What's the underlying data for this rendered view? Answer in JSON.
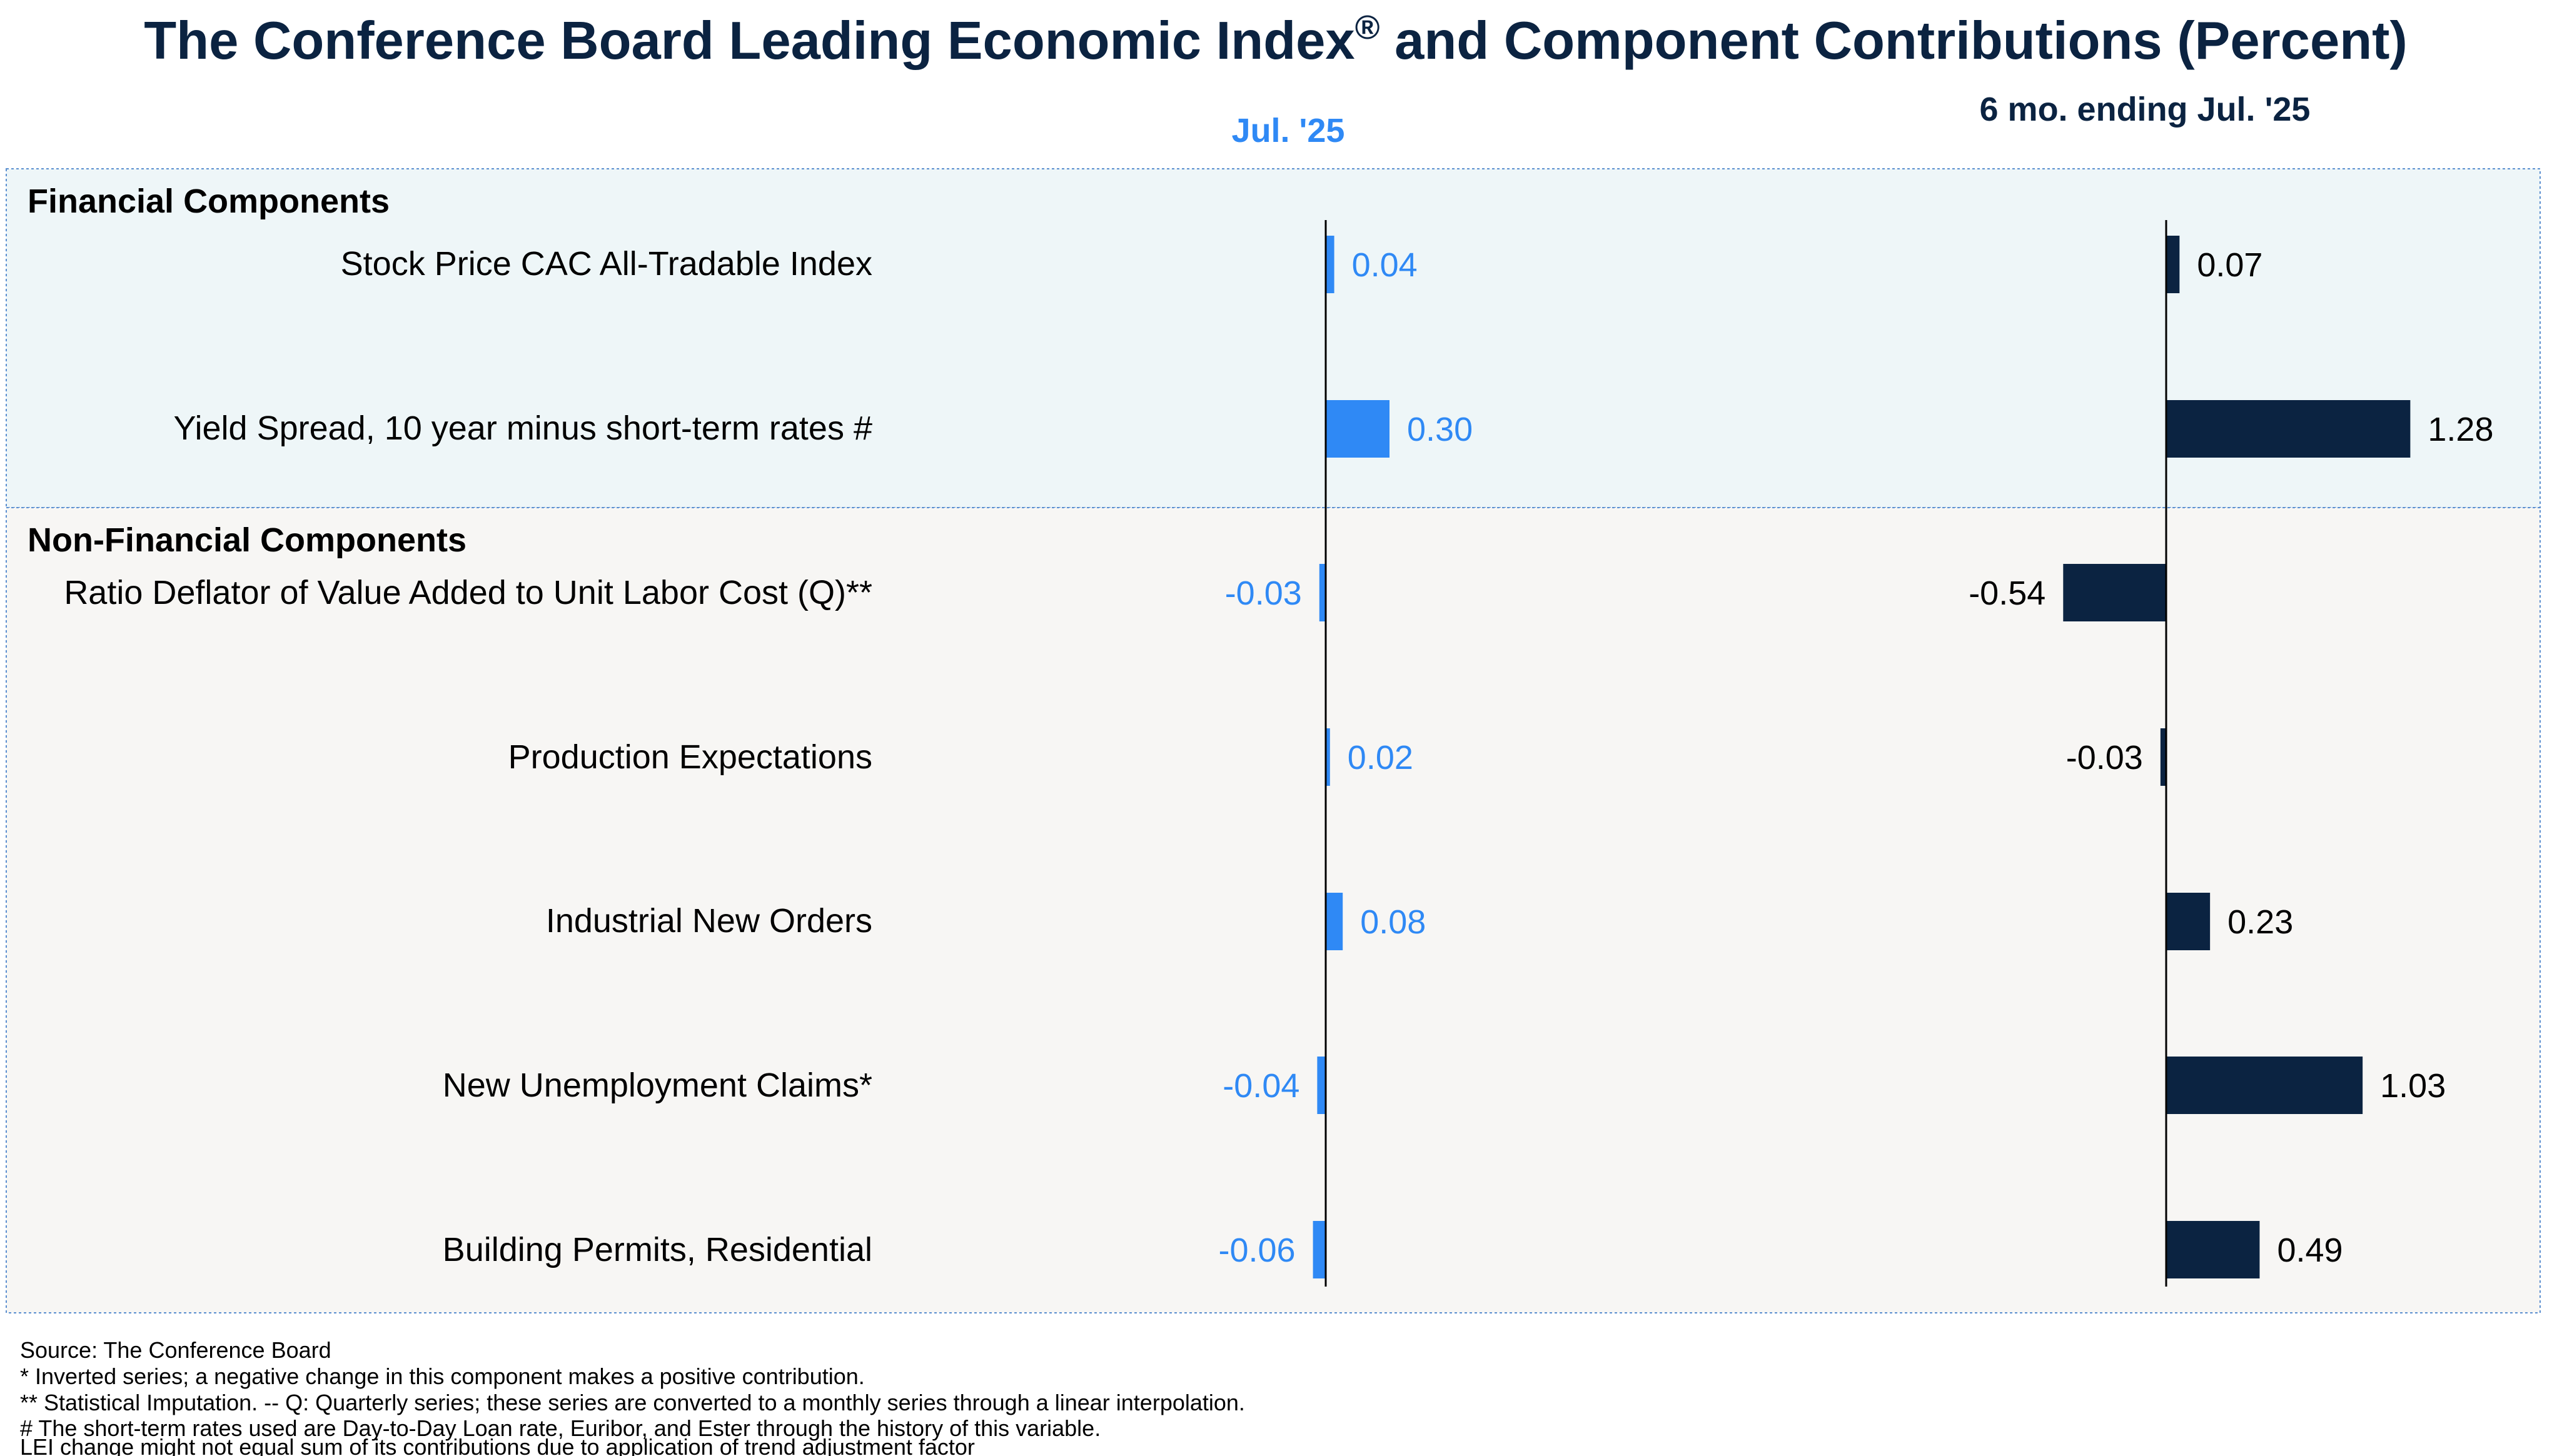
{
  "title": "The Conference Board Leading Economic Index",
  "title_mark": "®",
  "title_rest": " and Component Contributions (Percent)",
  "column_headers": {
    "monthly": "Jul. '25",
    "six_month": "6 mo. ending Jul. '25"
  },
  "sections": {
    "financial": "Financial Components",
    "non_financial": "Non-Financial Components"
  },
  "colors": {
    "monthly": "#2f89f5",
    "six_month": "#0b2341",
    "title": "#0b2341",
    "financial_bg": "#eef6f8",
    "non_financial_bg": "#f7f6f4",
    "border": "#5b8fd0"
  },
  "chart_data": [
    {
      "type": "bar",
      "orientation": "horizontal",
      "title": "Jul. '25",
      "categories": [
        "Stock Price CAC All-Tradable Index",
        "Yield Spread, 10 year minus short-term rates #",
        "Ratio Deflator of Value Added to Unit Labor Cost (Q)**",
        "Production Expectations",
        "Industrial New Orders",
        "New Unemployment Claims*",
        "Building Permits, Residential"
      ],
      "values": [
        0.04,
        0.3,
        -0.03,
        0.02,
        0.08,
        -0.04,
        -0.06
      ],
      "value_labels": [
        "0.04",
        "0.30",
        "-0.03",
        "0.02",
        "0.08",
        "-0.04",
        "-0.06"
      ]
    },
    {
      "type": "bar",
      "orientation": "horizontal",
      "title": "6 mo. ending Jul. '25",
      "categories": [
        "Stock Price CAC All-Tradable Index",
        "Yield Spread, 10 year minus short-term rates #",
        "Ratio Deflator of Value Added to Unit Labor Cost (Q)**",
        "Production Expectations",
        "Industrial New Orders",
        "New Unemployment Claims*",
        "Building Permits, Residential"
      ],
      "values": [
        0.07,
        1.28,
        -0.54,
        -0.03,
        0.23,
        1.03,
        0.49
      ],
      "value_labels": [
        "0.07",
        "1.28",
        "-0.54",
        "-0.03",
        "0.23",
        "1.03",
        "0.49"
      ]
    }
  ],
  "footnotes": [
    "Source: The Conference Board",
    "*  Inverted series; a negative change in this component makes a positive contribution.",
    "**  Statistical Imputation. -- Q: Quarterly series; these series are converted to a monthly series through a linear interpolation.",
    "# The short-term rates used are Day-to-Day Loan rate, Euribor, and Ester through the history of this variable.",
    "LEI change might not equal sum of its contributions due to application of trend adjustment factor"
  ]
}
